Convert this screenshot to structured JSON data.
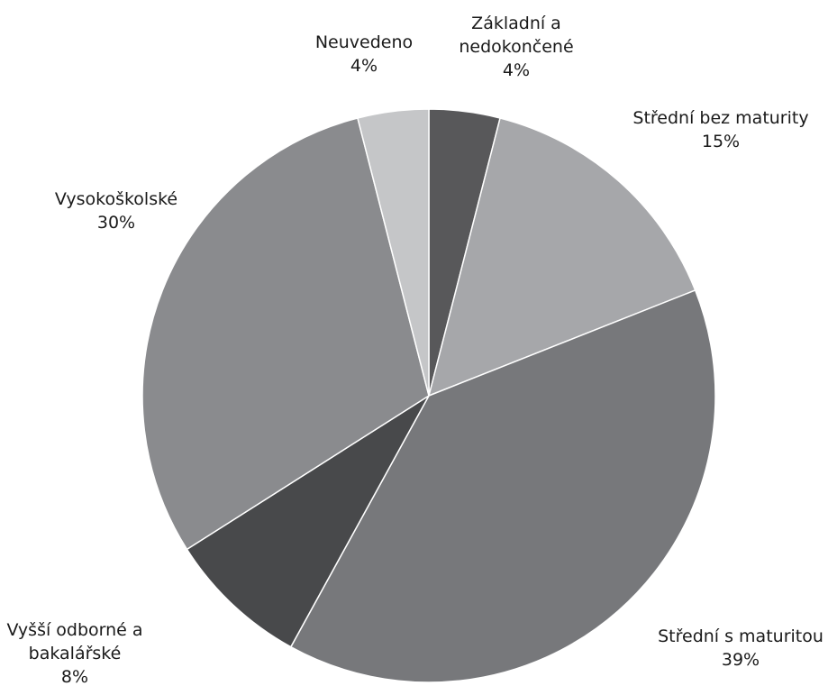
{
  "chart_data": {
    "type": "pie",
    "title": "",
    "start_angle_deg": 0,
    "direction": "clockwise",
    "slices": [
      {
        "label_lines": [
          "Základní a",
          "nedokončené"
        ],
        "percent_label": "4%",
        "value": 4,
        "color": "#58585a"
      },
      {
        "label_lines": [
          "Střední bez maturity"
        ],
        "percent_label": "15%",
        "value": 15,
        "color": "#a6a7aa"
      },
      {
        "label_lines": [
          "Střední s maturitou"
        ],
        "percent_label": "39%",
        "value": 39,
        "color": "#77787b"
      },
      {
        "label_lines": [
          "Vyšší odborné a",
          "bakalářské"
        ],
        "percent_label": "8%",
        "value": 8,
        "color": "#48494b"
      },
      {
        "label_lines": [
          "Vysokoškolské"
        ],
        "percent_label": "30%",
        "value": 30,
        "color": "#8a8b8e"
      },
      {
        "label_lines": [
          "Neuvedeno"
        ],
        "percent_label": "4%",
        "value": 4,
        "color": "#c5c6c8"
      }
    ]
  }
}
